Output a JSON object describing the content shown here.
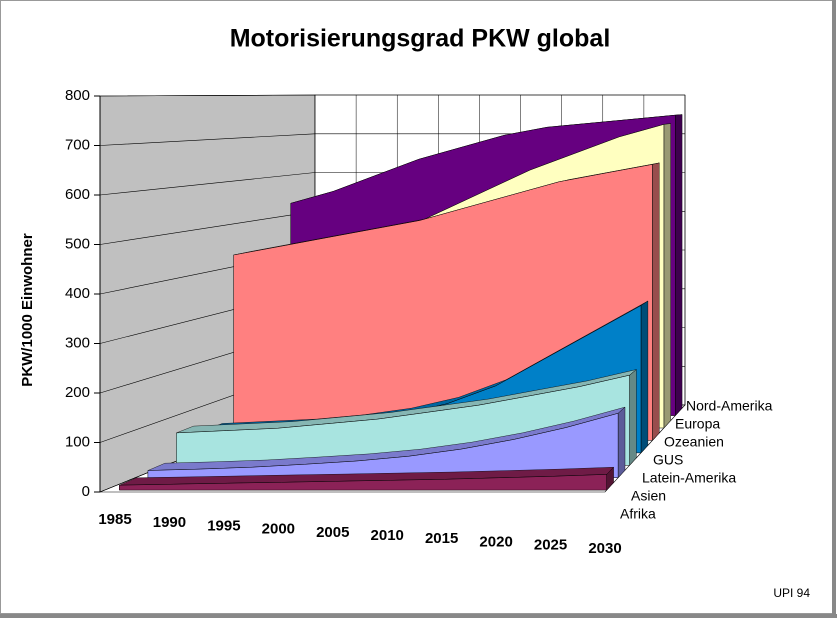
{
  "chart_data": {
    "type": "area3d",
    "title": "Motorisierungsgrad PKW global",
    "ylabel": "PKW/1000 Einwohner",
    "note": "UPI 94",
    "categories": [
      "1985",
      "1990",
      "1995",
      "2000",
      "2005",
      "2010",
      "2015",
      "2020",
      "2025",
      "2030"
    ],
    "ylim": [
      0,
      800
    ],
    "yticks": [
      0,
      100,
      200,
      300,
      400,
      500,
      600,
      700,
      800
    ],
    "grid": true,
    "series": [
      {
        "name": "Afrika",
        "color": "#8b2257",
        "values": [
          10,
          12,
          14,
          16,
          18,
          20,
          22,
          25,
          28,
          32
        ]
      },
      {
        "name": "Asien",
        "color": "#9999ff",
        "values": [
          15,
          18,
          22,
          28,
          35,
          45,
          60,
          80,
          105,
          135
        ]
      },
      {
        "name": "Latein-Amerika",
        "color": "#a8e4e0",
        "values": [
          70,
          75,
          80,
          90,
          100,
          115,
          130,
          150,
          170,
          195
        ]
      },
      {
        "name": "GUS",
        "color": "#0080c8",
        "values": [
          50,
          55,
          60,
          70,
          85,
          110,
          150,
          210,
          270,
          330
        ]
      },
      {
        "name": "Ozeanien",
        "color": "#ff8080",
        "values": [
          430,
          450,
          470,
          490,
          510,
          540,
          570,
          600,
          620,
          640
        ]
      },
      {
        "name": "Europa",
        "color": "#ffffc0",
        "values": [
          330,
          370,
          420,
          470,
          520,
          570,
          620,
          660,
          700,
          730
        ]
      },
      {
        "name": "Nord-Amerika",
        "color": "#660080",
        "values": [
          530,
          560,
          600,
          640,
          670,
          700,
          720,
          730,
          740,
          750
        ]
      }
    ]
  }
}
